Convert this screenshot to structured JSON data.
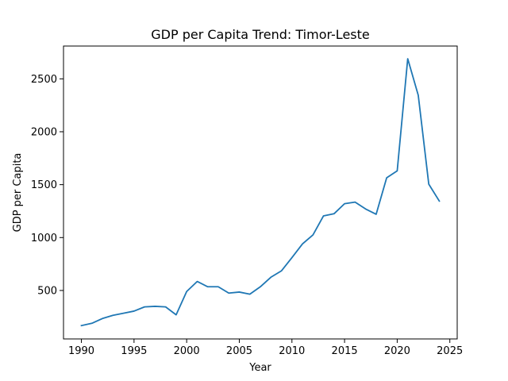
{
  "chart_data": {
    "type": "line",
    "title": "GDP per Capita Trend: Timor-Leste",
    "xlabel": "Year",
    "ylabel": "GDP per Capita",
    "xlim": [
      1988.3,
      2025.7
    ],
    "ylim": [
      42,
      2810
    ],
    "xticks": [
      1990,
      1995,
      2000,
      2005,
      2010,
      2015,
      2020,
      2025
    ],
    "yticks": [
      500,
      1000,
      1500,
      2000,
      2500
    ],
    "grid": false,
    "series": [
      {
        "color": "#1f77b4",
        "x": [
          1990,
          1991,
          1992,
          1993,
          1994,
          1995,
          1996,
          1997,
          1998,
          1999,
          2000,
          2001,
          2002,
          2003,
          2004,
          2005,
          2006,
          2007,
          2008,
          2009,
          2010,
          2011,
          2012,
          2013,
          2014,
          2015,
          2016,
          2017,
          2018,
          2019,
          2020,
          2021,
          2022,
          2023,
          2024
        ],
        "values": [
          168,
          190,
          235,
          265,
          285,
          305,
          345,
          350,
          345,
          270,
          490,
          585,
          535,
          535,
          475,
          485,
          465,
          535,
          625,
          685,
          810,
          940,
          1025,
          1205,
          1225,
          1320,
          1335,
          1270,
          1220,
          1565,
          1630,
          2690,
          2345,
          1505,
          1345
        ]
      }
    ]
  }
}
